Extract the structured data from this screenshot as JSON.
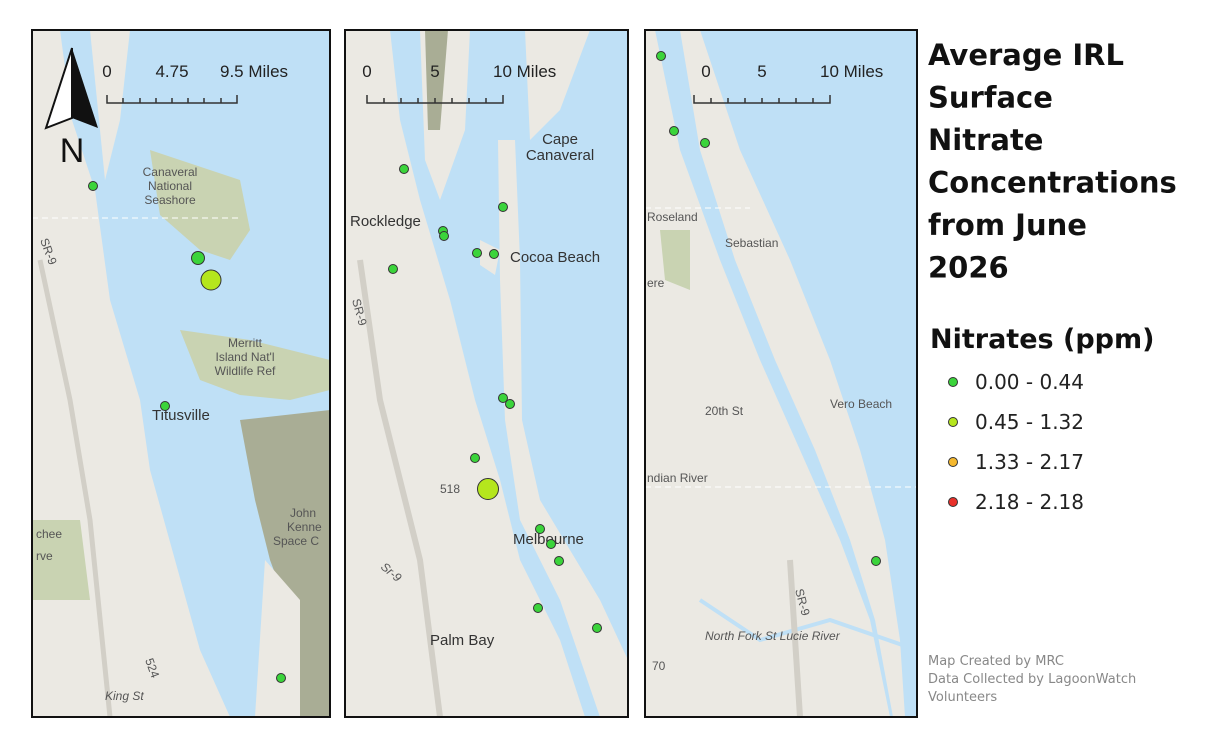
{
  "title_lines": [
    "Average IRL",
    "Surface",
    "Nitrate",
    "Concentrations",
    "from June",
    "2026"
  ],
  "legend": {
    "title": "Nitrates (ppm)",
    "items": [
      {
        "label": "0.00 - 0.44",
        "color": "#3bd43b"
      },
      {
        "label": "0.45 - 1.32",
        "color": "#b5e61d"
      },
      {
        "label": "1.33 - 2.17",
        "color": "#f5b82e"
      },
      {
        "label": "2.18 - 2.18",
        "color": "#e8302a"
      }
    ]
  },
  "credits": [
    "Map Created by MRC",
    "Data Collected by LagoonWatch",
    "Volunteers"
  ],
  "north_arrow": "N",
  "panels": [
    {
      "scale_labels": [
        "0",
        "4.75",
        "9.5 Miles"
      ],
      "labels": [
        "Canaveral",
        "National",
        "Seashore",
        "SR-9",
        "Merritt",
        "Island Nat'l",
        "Wildlife Ref",
        "Titusville",
        "John",
        "Kenne",
        "Space C",
        "chee",
        "rve",
        "524",
        "King St"
      ]
    },
    {
      "scale_labels": [
        "0",
        "5",
        "10 Miles"
      ],
      "labels": [
        "Cape",
        "Canaveral",
        "Rockledge",
        "Cocoa Beach",
        "SR-9",
        "518",
        "Melbourne",
        "Sr-9",
        "Palm Bay"
      ]
    },
    {
      "scale_labels": [
        "0",
        "5",
        "10 Miles"
      ],
      "labels": [
        "Roseland",
        "Sebastian",
        "ere",
        "20th St",
        "Vero Beach",
        "ndian River",
        "SR-9",
        "North Fork St Lucie River",
        "70"
      ]
    }
  ]
}
